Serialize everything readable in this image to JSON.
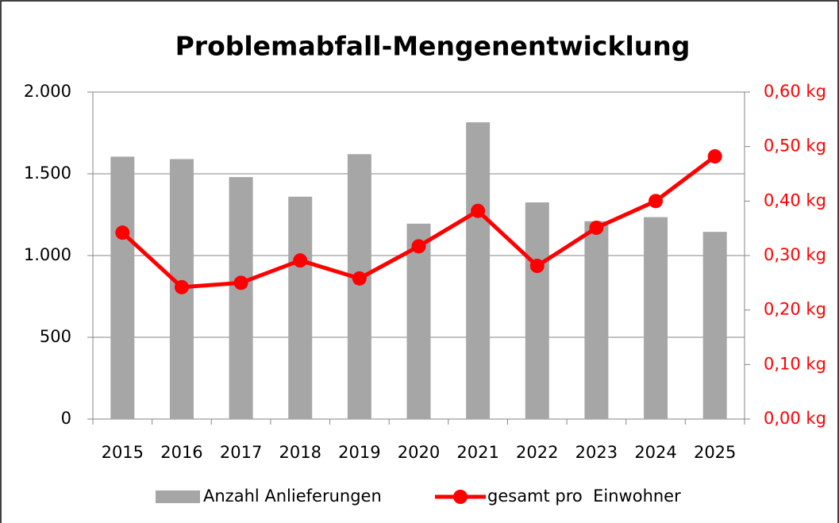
{
  "chart_data": {
    "type": "bar-line",
    "title": "Problemabfall-Mengenentwicklung",
    "categories": [
      "2015",
      "2016",
      "2017",
      "2018",
      "2019",
      "2020",
      "2021",
      "2022",
      "2023",
      "2024",
      "2025"
    ],
    "series": [
      {
        "name": "Anzahl Anlieferungen",
        "type": "bar",
        "color": "#a6a6a6",
        "axis": "y",
        "values": [
          1605,
          1590,
          1480,
          1360,
          1620,
          1195,
          1815,
          1325,
          1210,
          1235,
          1145
        ]
      },
      {
        "name": "gesamt pro  Einwohner",
        "type": "line",
        "color": "#ff0000",
        "axis": "y2",
        "values": [
          0.342,
          0.242,
          0.25,
          0.291,
          0.258,
          0.317,
          0.382,
          0.281,
          0.351,
          0.4,
          0.482
        ]
      }
    ],
    "ylim": [
      0,
      2000
    ],
    "yticks": [
      0,
      500,
      {
        "value": 1000,
        "label": "1.000"
      },
      {
        "value": 1500,
        "label": "1.500"
      },
      {
        "value": 2000,
        "label": "2.000"
      }
    ],
    "y2lim": [
      0,
      0.6
    ],
    "y2ticks": [
      {
        "value": 0,
        "label": "0,00 kg"
      },
      {
        "value": 0.1,
        "label": "0,10 kg"
      },
      {
        "value": 0.2,
        "label": "0,20 kg"
      },
      {
        "value": 0.3,
        "label": "0,30 kg"
      },
      {
        "value": 0.4,
        "label": "0,40 kg"
      },
      {
        "value": 0.5,
        "label": "0,50 kg"
      },
      {
        "value": 0.6,
        "label": "0,60 kg"
      }
    ],
    "grid": true,
    "legend": "bottom"
  }
}
